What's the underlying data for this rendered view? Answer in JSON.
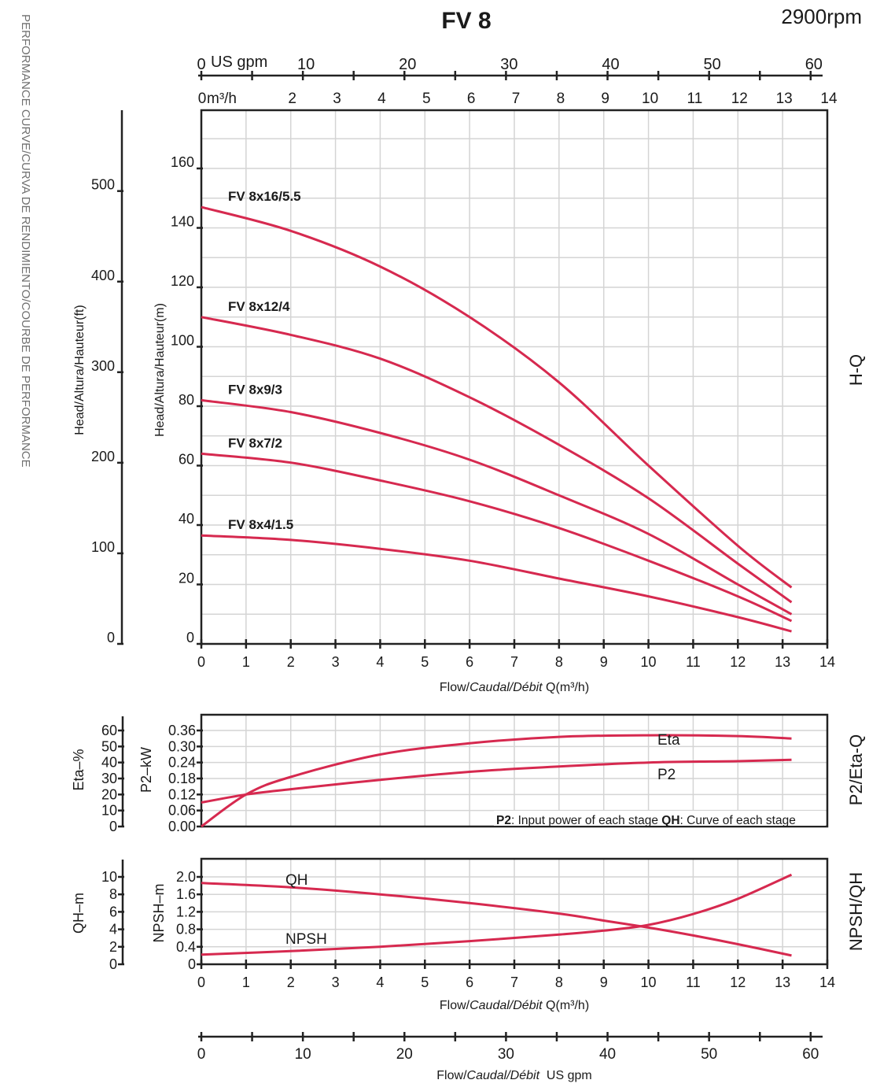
{
  "header": {
    "title": "FV 8",
    "speed": "2900rpm",
    "side_title": "PERFORMANCE CURVE/CURVA DE RENDIMIENTO/COURBE DE PERFORMANCE"
  },
  "top_axes": {
    "gpm_unit": "US gpm",
    "gpm_ticks": [
      "0",
      "10",
      "20",
      "30",
      "40",
      "50",
      "60"
    ],
    "m3h_unit": "m³/h",
    "m3h_ticks": [
      "0",
      "2",
      "3",
      "4",
      "5",
      "6",
      "7",
      "8",
      "9",
      "10",
      "11",
      "12",
      "13",
      "14"
    ]
  },
  "bottom_axis": {
    "gpm_ticks": [
      "0",
      "10",
      "20",
      "30",
      "40",
      "50",
      "60"
    ],
    "gpm_title_plain": "Flow/",
    "gpm_title_italic": "Caudal/Débit",
    "gpm_title_unit": "  US gpm"
  },
  "notes": {
    "legend_p2_bold": "P2",
    "legend_p2_text": ": Input power of each stage ",
    "legend_qh_bold": "QH",
    "legend_qh_text": ": Curve of each stage"
  },
  "chart_data": [
    {
      "type": "line",
      "panel_label": "H-Q",
      "title": "FV 8",
      "xlabel": "Flow/Caudal/Débit Q(m³/h)",
      "ylabel": "Head/Altura/Hauteur(m)",
      "ylabel_secondary": "Head/Altura/Hauteur(ft)",
      "xlim": [
        0,
        14
      ],
      "ylim": [
        0,
        180
      ],
      "ylim_secondary_ft": [
        0,
        590
      ],
      "x_ticks": [
        "0",
        "1",
        "2",
        "3",
        "4",
        "5",
        "6",
        "7",
        "8",
        "9",
        "10",
        "11",
        "12",
        "13",
        "14"
      ],
      "y_ticks": [
        "0",
        "20",
        "40",
        "60",
        "80",
        "100",
        "120",
        "140",
        "160"
      ],
      "y_ticks_secondary": [
        "0",
        "100",
        "200",
        "300",
        "400",
        "500"
      ],
      "grid": true,
      "x": [
        0,
        2,
        4,
        6,
        8,
        10,
        12,
        13.2
      ],
      "series": [
        {
          "name": "FV 8x16/5.5",
          "values": [
            147,
            139,
            127,
            110,
            88,
            60,
            33,
            19
          ]
        },
        {
          "name": "FV 8x12/4",
          "values": [
            110,
            104,
            96,
            83,
            67,
            49,
            27,
            14
          ]
        },
        {
          "name": "FV 8x9/3",
          "values": [
            82,
            78,
            71,
            62,
            50,
            37,
            20,
            10
          ]
        },
        {
          "name": "FV 8x7/2",
          "values": [
            64,
            61,
            55,
            48,
            39,
            28,
            16,
            7.7
          ]
        },
        {
          "name": "FV 8x4/1.5",
          "values": [
            36.5,
            35,
            32,
            28,
            22,
            16,
            9,
            4.2
          ]
        }
      ]
    },
    {
      "type": "line",
      "panel_label": "P2/Eta-Q",
      "xlabel": "",
      "ylabel": "P2–kW",
      "ylabel_secondary": "Eta–%",
      "xlim": [
        0,
        14
      ],
      "ylim": [
        0,
        0.42
      ],
      "ylim_secondary": [
        0,
        70
      ],
      "y_ticks": [
        "0.00",
        "0.06",
        "0.12",
        "0.18",
        "0.24",
        "0.30",
        "0.36"
      ],
      "y_ticks_secondary": [
        "0",
        "10",
        "20",
        "30",
        "40",
        "50",
        "60"
      ],
      "grid": true,
      "x": [
        0,
        1,
        2,
        4,
        6,
        8,
        10,
        12,
        13.2
      ],
      "series": [
        {
          "name": "Eta",
          "axis": "secondary",
          "values": [
            0,
            20,
            31,
            45,
            52,
            56,
            57,
            56.5,
            55
          ]
        },
        {
          "name": "P2",
          "axis": "primary",
          "values": [
            0.09,
            0.12,
            0.14,
            0.175,
            0.205,
            0.225,
            0.24,
            0.245,
            0.25
          ]
        }
      ]
    },
    {
      "type": "line",
      "panel_label": "NPSH/QH",
      "xlabel": "Flow/Caudal/Débit Q(m³/h)",
      "ylabel": "NPSH–m",
      "ylabel_secondary": "QH–m",
      "xlim": [
        0,
        14
      ],
      "ylim": [
        0,
        2.4
      ],
      "ylim_secondary": [
        0,
        12
      ],
      "x_ticks": [
        "0",
        "1",
        "2",
        "3",
        "4",
        "5",
        "6",
        "7",
        "8",
        "9",
        "10",
        "11",
        "12",
        "13",
        "14"
      ],
      "y_ticks": [
        "0",
        "0.4",
        "0.8",
        "1.2",
        "1.6",
        "2.0"
      ],
      "y_ticks_secondary": [
        "0",
        "2",
        "4",
        "6",
        "8",
        "10"
      ],
      "grid": true,
      "x": [
        0,
        2,
        4,
        6,
        8,
        9,
        10,
        11,
        12,
        13.2
      ],
      "series": [
        {
          "name": "QH",
          "axis": "secondary",
          "values": [
            9.3,
            8.8,
            8.0,
            7.0,
            5.8,
            5.0,
            4.2,
            3.3,
            2.3,
            1.0
          ]
        },
        {
          "name": "NPSH",
          "axis": "primary",
          "values": [
            0.22,
            0.3,
            0.4,
            0.53,
            0.68,
            0.77,
            0.9,
            1.15,
            1.5,
            2.05
          ]
        }
      ]
    }
  ],
  "colors": {
    "curve": "#d6294f",
    "grid": "#d4d4d4",
    "axis": "#222222",
    "side_title": "#707070"
  }
}
